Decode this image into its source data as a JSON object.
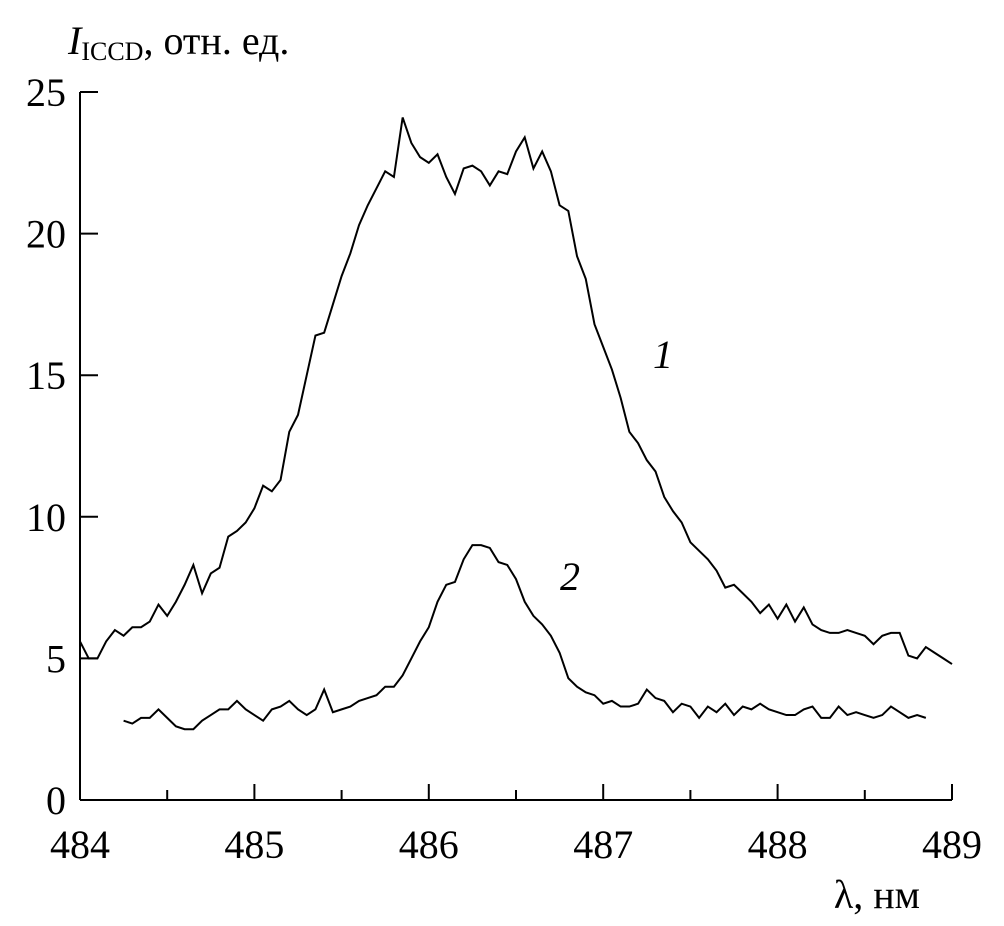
{
  "chart_data": {
    "type": "line",
    "ylabel": {
      "symbol": "I",
      "subscript": "ICCD",
      "text": ", отн. ед."
    },
    "xlabel": "λ, нм",
    "xlim": [
      484,
      489
    ],
    "xticks": [
      484,
      485,
      486,
      487,
      488,
      489
    ],
    "xminorticks": [
      484.5,
      485.5,
      486.5,
      487.5,
      488.5
    ],
    "ylim": [
      0,
      25
    ],
    "yticks": [
      0,
      5,
      10,
      15,
      20,
      25
    ],
    "series": [
      {
        "name": "1",
        "color": "#000000",
        "x": [
          484.0,
          484.05,
          484.1,
          484.15,
          484.2,
          484.25,
          484.3,
          484.35,
          484.4,
          484.45,
          484.5,
          484.55,
          484.6,
          484.65,
          484.7,
          484.75,
          484.8,
          484.85,
          484.9,
          484.95,
          485.0,
          485.05,
          485.1,
          485.15,
          485.2,
          485.25,
          485.3,
          485.35,
          485.4,
          485.45,
          485.5,
          485.55,
          485.6,
          485.65,
          485.7,
          485.75,
          485.8,
          485.85,
          485.9,
          485.95,
          486.0,
          486.05,
          486.1,
          486.15,
          486.2,
          486.25,
          486.3,
          486.35,
          486.4,
          486.45,
          486.5,
          486.55,
          486.6,
          486.65,
          486.7,
          486.75,
          486.8,
          486.85,
          486.9,
          486.95,
          487.0,
          487.05,
          487.1,
          487.15,
          487.2,
          487.25,
          487.3,
          487.35,
          487.4,
          487.45,
          487.5,
          487.55,
          487.6,
          487.65,
          487.7,
          487.75,
          487.8,
          487.85,
          487.9,
          487.95,
          488.0,
          488.05,
          488.1,
          488.15,
          488.2,
          488.25,
          488.3,
          488.35,
          488.4,
          488.45,
          488.5,
          488.55,
          488.6,
          488.65,
          488.7,
          488.75,
          488.8,
          488.85,
          488.9,
          488.95,
          489.0
        ],
        "values": [
          5.6,
          5.0,
          5.0,
          5.6,
          6.0,
          5.8,
          6.1,
          6.1,
          6.3,
          6.9,
          6.5,
          7.0,
          7.6,
          8.3,
          7.3,
          8.0,
          8.2,
          9.3,
          9.5,
          9.8,
          10.3,
          11.1,
          10.9,
          11.3,
          13.0,
          13.6,
          15.0,
          16.4,
          16.5,
          17.5,
          18.5,
          19.3,
          20.3,
          21.0,
          21.6,
          22.2,
          22.0,
          24.1,
          23.2,
          22.7,
          22.5,
          22.8,
          22.0,
          21.4,
          22.3,
          22.4,
          22.2,
          21.7,
          22.2,
          22.1,
          22.9,
          23.4,
          22.3,
          22.9,
          22.2,
          21.0,
          20.8,
          19.2,
          18.4,
          16.8,
          16.0,
          15.2,
          14.2,
          13.0,
          12.6,
          12.0,
          11.6,
          10.7,
          10.2,
          9.8,
          9.1,
          8.8,
          8.5,
          8.1,
          7.5,
          7.6,
          7.3,
          7.0,
          6.6,
          6.9,
          6.4,
          6.9,
          6.3,
          6.8,
          6.2,
          6.0,
          5.9,
          5.9,
          6.0,
          5.9,
          5.8,
          5.5,
          5.8,
          5.9,
          5.9,
          5.1,
          5.0,
          5.4,
          5.2,
          5.0,
          4.8
        ]
      },
      {
        "name": "2",
        "color": "#000000",
        "x": [
          484.25,
          484.3,
          484.35,
          484.4,
          484.45,
          484.5,
          484.55,
          484.6,
          484.65,
          484.7,
          484.75,
          484.8,
          484.85,
          484.9,
          484.95,
          485.0,
          485.05,
          485.1,
          485.15,
          485.2,
          485.25,
          485.3,
          485.35,
          485.4,
          485.45,
          485.5,
          485.55,
          485.6,
          485.65,
          485.7,
          485.75,
          485.8,
          485.85,
          485.9,
          485.95,
          486.0,
          486.05,
          486.1,
          486.15,
          486.2,
          486.25,
          486.3,
          486.35,
          486.4,
          486.45,
          486.5,
          486.55,
          486.6,
          486.65,
          486.7,
          486.75,
          486.8,
          486.85,
          486.9,
          486.95,
          487.0,
          487.05,
          487.1,
          487.15,
          487.2,
          487.25,
          487.3,
          487.35,
          487.4,
          487.45,
          487.5,
          487.55,
          487.6,
          487.65,
          487.7,
          487.75,
          487.8,
          487.85,
          487.9,
          487.95,
          488.0,
          488.05,
          488.1,
          488.15,
          488.2,
          488.25,
          488.3,
          488.35,
          488.4,
          488.45,
          488.5,
          488.55,
          488.6,
          488.65,
          488.7,
          488.75,
          488.8,
          488.85
        ],
        "values": [
          2.8,
          2.7,
          2.9,
          2.9,
          3.2,
          2.9,
          2.6,
          2.5,
          2.5,
          2.8,
          3.0,
          3.2,
          3.2,
          3.5,
          3.2,
          3.0,
          2.8,
          3.2,
          3.3,
          3.5,
          3.2,
          3.0,
          3.2,
          3.9,
          3.1,
          3.2,
          3.3,
          3.5,
          3.6,
          3.7,
          4.0,
          4.0,
          4.4,
          5.0,
          5.6,
          6.1,
          7.0,
          7.6,
          7.7,
          8.5,
          9.0,
          9.0,
          8.9,
          8.4,
          8.3,
          7.8,
          7.0,
          6.5,
          6.2,
          5.8,
          5.2,
          4.3,
          4.0,
          3.8,
          3.7,
          3.4,
          3.5,
          3.3,
          3.3,
          3.4,
          3.9,
          3.6,
          3.5,
          3.1,
          3.4,
          3.3,
          2.9,
          3.3,
          3.1,
          3.4,
          3.0,
          3.3,
          3.2,
          3.4,
          3.2,
          3.1,
          3.0,
          3.0,
          3.2,
          3.3,
          2.9,
          2.9,
          3.3,
          3.0,
          3.1,
          3.0,
          2.9,
          3.0,
          3.3,
          3.1,
          2.9,
          3.0,
          2.9
        ]
      }
    ]
  }
}
